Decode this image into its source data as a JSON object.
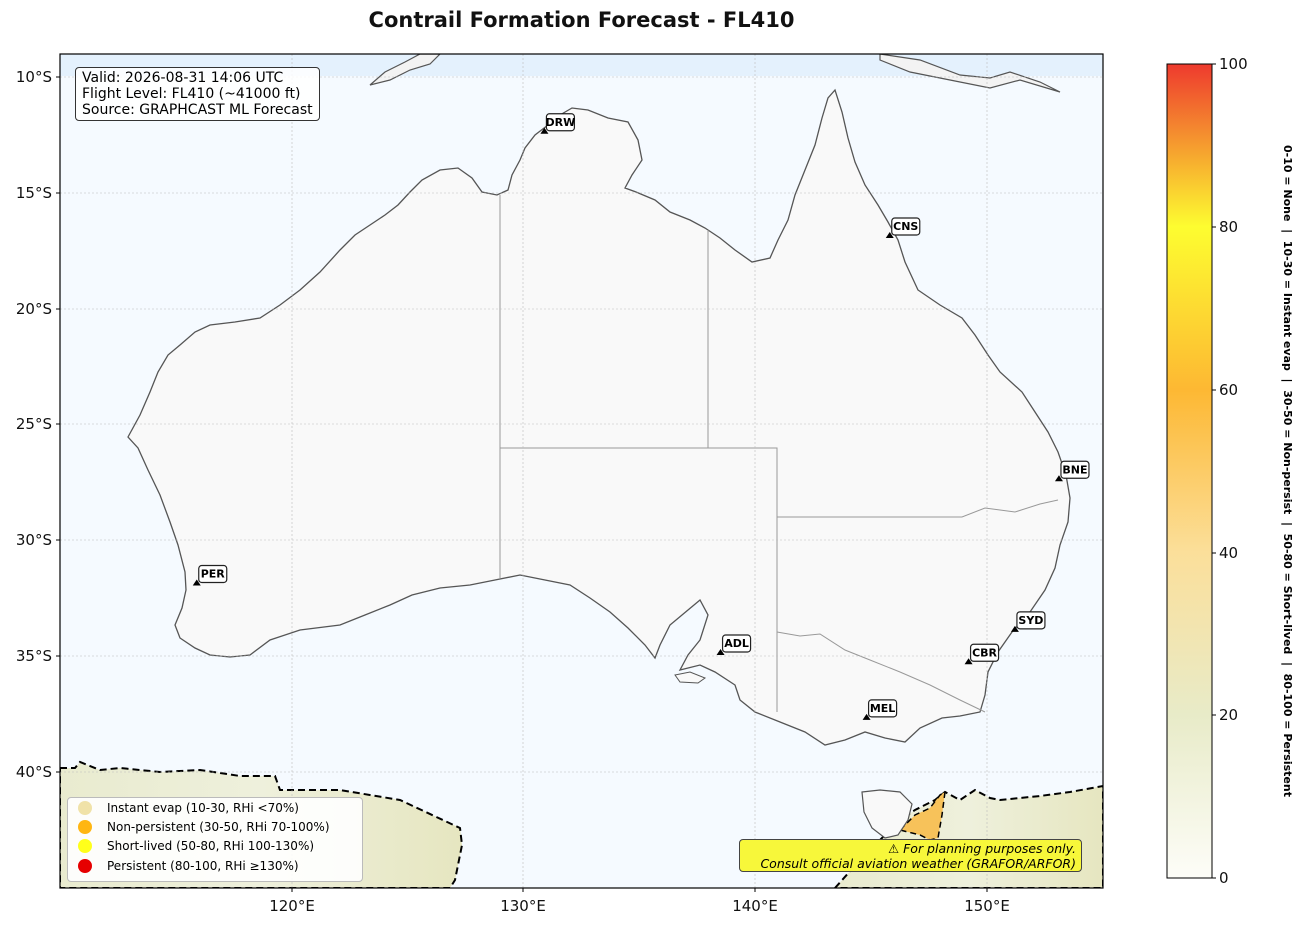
{
  "title": "Contrail Formation Forecast - FL410",
  "info": {
    "valid": "Valid: 2026-08-31 14:06 UTC",
    "flight_level": "Flight Level: FL410 (~41000 ft)",
    "source": "Source: GRAPHCAST ML Forecast"
  },
  "map": {
    "lat_ticks": [
      "10°S",
      "15°S",
      "20°S",
      "25°S",
      "30°S",
      "35°S",
      "40°S"
    ],
    "lon_ticks": [
      "120°E",
      "130°E",
      "140°E",
      "150°E"
    ],
    "extent": {
      "lon_min": 110,
      "lon_max": 155,
      "lat_min": -45,
      "lat_max": -9
    }
  },
  "airports": [
    {
      "code": "DRW",
      "lon": 130.9,
      "lat": -12.4
    },
    {
      "code": "CNS",
      "lon": 145.8,
      "lat": -16.9
    },
    {
      "code": "BNE",
      "lon": 153.1,
      "lat": -27.4
    },
    {
      "code": "PER",
      "lon": 115.9,
      "lat": -31.9
    },
    {
      "code": "ADL",
      "lon": 138.5,
      "lat": -34.9
    },
    {
      "code": "SYD",
      "lon": 151.2,
      "lat": -33.9
    },
    {
      "code": "CBR",
      "lon": 149.2,
      "lat": -35.3
    },
    {
      "code": "MEL",
      "lon": 144.8,
      "lat": -37.7
    }
  ],
  "legend": [
    {
      "label": "Instant evap (10-30, RHi <70%)",
      "color": "#f0e2a8"
    },
    {
      "label": "Non-persistent (30-50, RHi 70-100%)",
      "color": "#ffb612"
    },
    {
      "label": "Short-lived (50-80, RHi 100-130%)",
      "color": "#ffff1a"
    },
    {
      "label": "Persistent (80-100, RHi ≥130%)",
      "color": "#e60000"
    }
  ],
  "disclaimer": {
    "line1": "⚠ For planning purposes only.",
    "line2": "Consult official aviation weather (GRAFOR/ARFOR)"
  },
  "colorbar": {
    "ticks": [
      "0",
      "20",
      "40",
      "60",
      "80",
      "100"
    ],
    "label": "0-10 = None  |  10-30 = Instant evap  |  30-50 = Non-persist  |  50-80 = Short-lived  |  80-100 = Persistent",
    "colors": [
      "#fdfdf8",
      "#e8ebc8",
      "#fbdf9a",
      "#fdb833",
      "#fdfd30",
      "#ee3a2e"
    ]
  }
}
